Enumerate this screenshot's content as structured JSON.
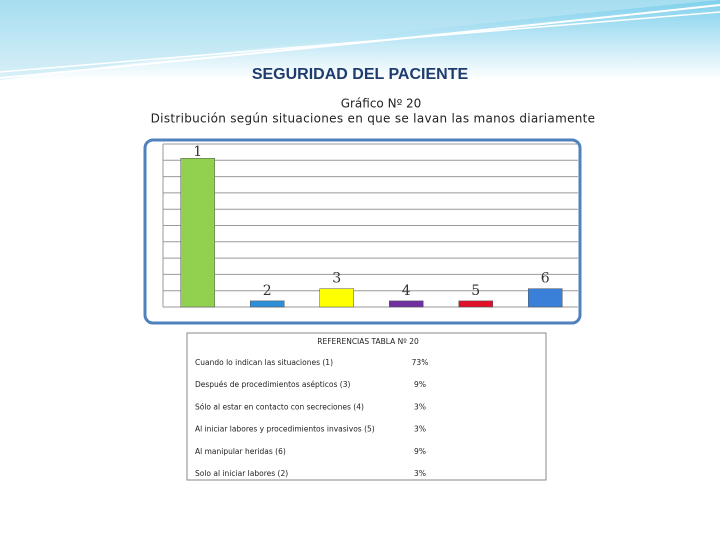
{
  "slide_title": "SEGURIDAD DEL PACIENTE",
  "chart_data": {
    "type": "bar",
    "title": "Gráfico Nº 20",
    "subtitle": "Distribución según situaciones en que se lavan las manos diariamente",
    "categories": [
      "1",
      "2",
      "3",
      "4",
      "5",
      "6"
    ],
    "values": [
      73,
      3,
      9,
      3,
      3,
      9
    ],
    "colors": [
      "#92d050",
      "#2e8fd8",
      "#ffff00",
      "#7030a0",
      "#e0102a",
      "#3a7fd8"
    ],
    "ylim": [
      0,
      80
    ],
    "yticks": [
      0,
      8,
      16,
      24,
      32,
      40,
      48,
      56,
      64,
      72,
      80
    ],
    "grid": true
  },
  "references": {
    "title": "REFERENCIAS TABLA Nº 20",
    "rows": [
      [
        "Cuando lo indican las situaciones (1)",
        "73%"
      ],
      [
        "Después de procedimientos asépticos (3)",
        "9%"
      ],
      [
        "Sólo al estar en contacto con secreciones (4)",
        "3%"
      ],
      [
        "Al iniciar labores y procedimientos invasivos (5)",
        "3%"
      ],
      [
        "Al manipular heridas (6)",
        "9%"
      ],
      [
        "Solo al iniciar labores (2)",
        "3%"
      ]
    ]
  }
}
